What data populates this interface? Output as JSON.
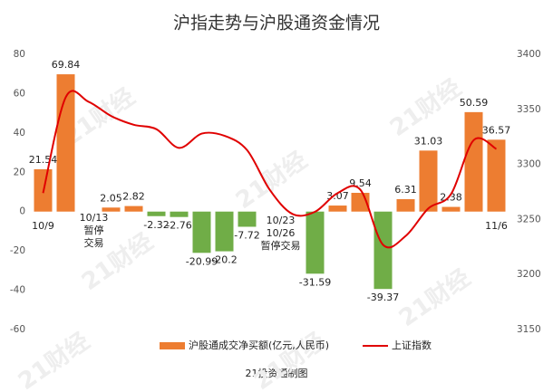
{
  "chart_data": {
    "type": "bar_line",
    "title": "沪指走势与沪股通资金情况",
    "footer": "21投资通制图",
    "watermark": "21财经",
    "categories": [
      "10/9",
      null,
      null,
      null,
      null,
      null,
      null,
      null,
      null,
      null,
      null,
      null,
      null,
      null,
      null,
      null,
      null,
      null,
      null,
      null,
      "11/6"
    ],
    "annotations": [
      [
        "10/13",
        "暂停",
        "交易"
      ],
      [
        "10/23",
        "10/26",
        "暂停交易"
      ]
    ],
    "series": [
      {
        "name": "沪股通成交净买额(亿元,人民币)",
        "type": "bar",
        "color": "#ed7d31",
        "negative_color": "#70ad47",
        "axis": "y",
        "values": [
          21.54,
          69.84,
          null,
          2.05,
          2.82,
          -2.32,
          -2.76,
          -20.99,
          -20.2,
          -7.72,
          null,
          null,
          -31.59,
          3.07,
          9.54,
          -39.37,
          6.31,
          31.03,
          2.38,
          50.59,
          36.57
        ]
      },
      {
        "name": "上证指数",
        "type": "line",
        "color": "#e00000",
        "axis": "y2",
        "values": [
          3274,
          3361,
          3357,
          3344,
          3336,
          3332,
          3315,
          3328,
          3326,
          3313,
          3277,
          3255,
          3257,
          3274,
          3277,
          3227,
          3235,
          3260,
          3273,
          3322,
          3314
        ]
      }
    ],
    "ylim": [
      -60,
      80
    ],
    "yticks": [
      -60,
      -40,
      -20,
      0,
      20,
      40,
      60,
      80
    ],
    "y2lim": [
      3150,
      3400
    ],
    "y2ticks": [
      3150,
      3200,
      3250,
      3300,
      3350,
      3400
    ],
    "legend": "bottom"
  }
}
